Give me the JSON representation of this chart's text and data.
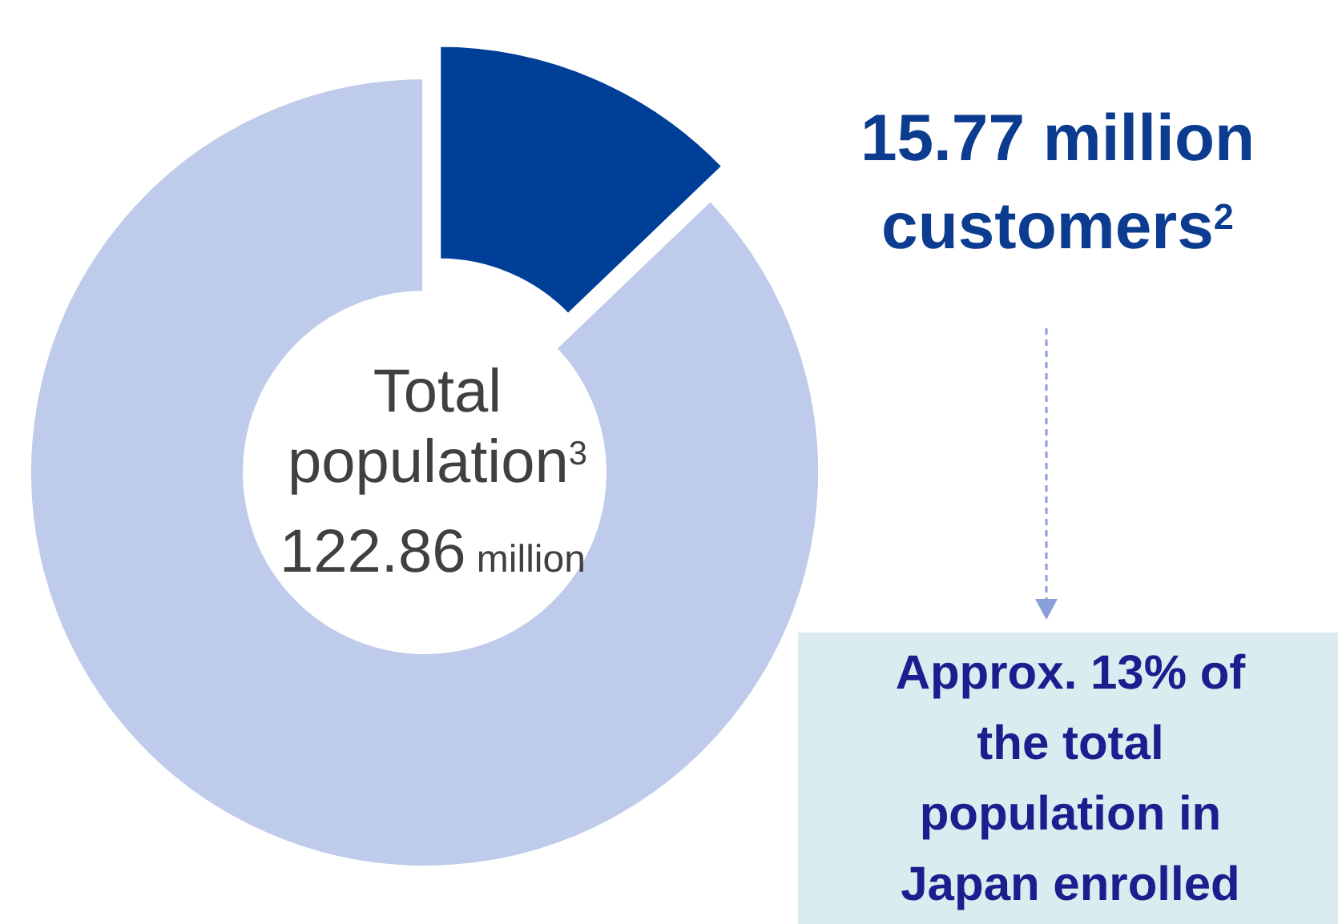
{
  "chart_data": {
    "type": "donut",
    "categories": [
      null,
      null
    ],
    "values": [
      12.84,
      87.16
    ],
    "colors": [
      "#003f98",
      "#bfcbea"
    ],
    "annotations": [
      "Total population$^{3}$",
      "122.86 million",
      "15.77 million customers$^{2}$",
      "Approx. 13% of the total population in Japan enrolled"
    ]
  }
}
